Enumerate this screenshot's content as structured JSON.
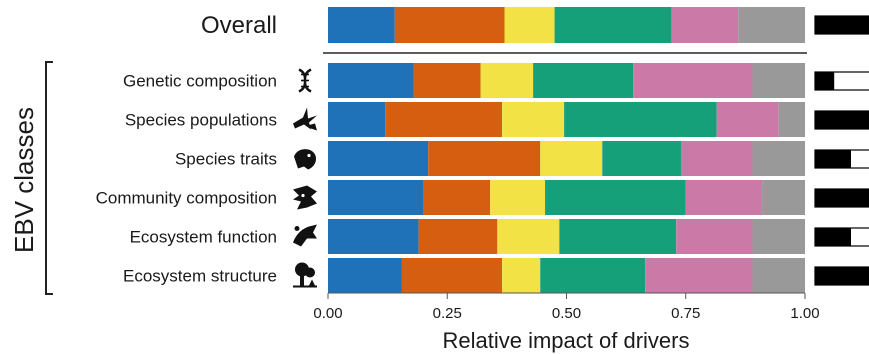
{
  "chart_data": {
    "type": "bar",
    "orientation": "horizontal",
    "stacked": true,
    "xlabel": "Relative impact of drivers",
    "xlim": [
      0,
      1
    ],
    "xticks": [
      "0.00",
      "0.25",
      "0.50",
      "0.75",
      "1.00"
    ],
    "group_label": "EBV classes",
    "overall": {
      "label": "Overall",
      "segments": [
        0.14,
        0.23,
        0.105,
        0.245,
        0.14,
        0.085
      ],
      "side_fraction": 0.95
    },
    "categories": [
      "Genetic composition",
      "Species populations",
      "Species traits",
      "Community composition",
      "Ecosystem function",
      "Ecosystem structure"
    ],
    "segments": [
      [
        0.18,
        0.14,
        0.11,
        0.21,
        0.25,
        0.11
      ],
      [
        0.12,
        0.245,
        0.13,
        0.32,
        0.13,
        0.055
      ],
      [
        0.21,
        0.235,
        0.13,
        0.165,
        0.15,
        0.11
      ],
      [
        0.2,
        0.14,
        0.115,
        0.295,
        0.16,
        0.09
      ],
      [
        0.19,
        0.165,
        0.13,
        0.245,
        0.16,
        0.11
      ],
      [
        0.155,
        0.21,
        0.08,
        0.22,
        0.225,
        0.11
      ]
    ],
    "side_fractions": [
      0.32,
      1.0,
      0.6,
      1.0,
      0.6,
      0.95
    ],
    "colors": [
      "#1f72b7",
      "#d65e11",
      "#f3e246",
      "#16a079",
      "#cb7aa7",
      "#999999"
    ],
    "side_bar_colors": {
      "fill": "#000000",
      "empty": "#ffffff"
    },
    "row_icons": [
      "dna-icon",
      "birds-icon",
      "bird-head-icon",
      "fish-bird-icon",
      "bird-insect-icon",
      "tree-icon"
    ],
    "grid": false,
    "legend": "none"
  }
}
